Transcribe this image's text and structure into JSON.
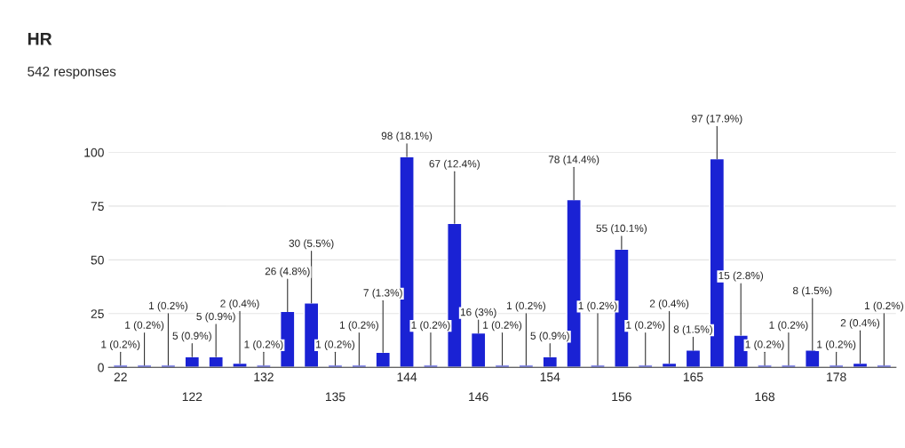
{
  "chart_data": {
    "type": "bar",
    "title": "HR",
    "subtitle": "542 responses",
    "categories": [
      "22",
      null,
      null,
      "122",
      null,
      null,
      "132",
      null,
      null,
      "135",
      null,
      null,
      "144",
      null,
      null,
      "146",
      null,
      null,
      "154",
      null,
      null,
      "156",
      null,
      null,
      "165",
      null,
      null,
      "168",
      null,
      null,
      "178",
      null,
      null
    ],
    "values": [
      1,
      1,
      1,
      5,
      5,
      2,
      1,
      26,
      30,
      1,
      1,
      7,
      98,
      1,
      67,
      16,
      1,
      1,
      5,
      78,
      1,
      55,
      1,
      2,
      8,
      97,
      15,
      1,
      1,
      8,
      1,
      2,
      1
    ],
    "value_labels": [
      "1 (0.2%)",
      "1 (0.2%)",
      "1 (0.2%)",
      "5 (0.9%)",
      "5 (0.9%)",
      "2 (0.4%)",
      "1 (0.2%)",
      "26 (4.8%)",
      "30 (5.5%)",
      "1 (0.2%)",
      "1 (0.2%)",
      "7 (1.3%)",
      "98 (18.1%)",
      "1 (0.2%)",
      "67 (12.4%)",
      "16 (3%)",
      "1 (0.2%)",
      "1 (0.2%)",
      "5 (0.9%)",
      "78 (14.4%)",
      "1 (0.2%)",
      "55 (10.1%)",
      "1 (0.2%)",
      "2 (0.4%)",
      "8 (1.5%)",
      "97 (17.9%)",
      "15 (2.8%)",
      "1 (0.2%)",
      "1 (0.2%)",
      "8 (1.5%)",
      "1 (0.2%)",
      "2 (0.4%)",
      "1 (0.2%)"
    ],
    "color": "#1a22d4",
    "ylim": [
      0,
      100
    ],
    "yticks": [
      0,
      25,
      50,
      75,
      100
    ],
    "grid": "y",
    "legend": false
  }
}
